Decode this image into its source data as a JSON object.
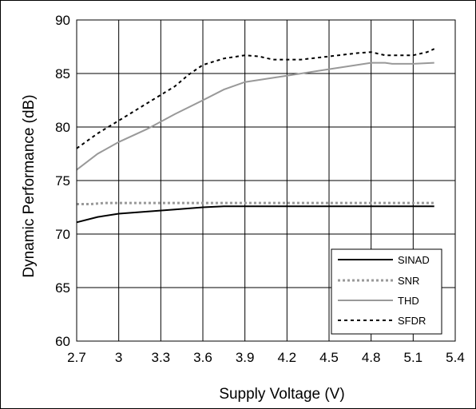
{
  "chart_data": {
    "type": "line",
    "title": "",
    "xlabel": "Supply Voltage (V)",
    "ylabel": "Dynamic Performance (dB)",
    "xlim": [
      2.7,
      5.4
    ],
    "ylim": [
      60,
      90
    ],
    "xticks": [
      "2.7",
      "3",
      "3.3",
      "3.6",
      "3.9",
      "4.2",
      "4.5",
      "4.8",
      "5.1",
      "5.4"
    ],
    "yticks": [
      "60",
      "65",
      "70",
      "75",
      "80",
      "85",
      "90"
    ],
    "grid": true,
    "legend_position": "bottom-right",
    "series": [
      {
        "name": "SINAD",
        "color": "#000000",
        "style": "solid",
        "x": [
          2.7,
          2.85,
          3.0,
          3.2,
          3.4,
          3.6,
          3.75,
          3.9,
          4.2,
          4.5,
          4.8,
          5.1,
          5.25
        ],
        "y": [
          71.1,
          71.6,
          71.9,
          72.1,
          72.3,
          72.5,
          72.6,
          72.6,
          72.6,
          72.6,
          72.6,
          72.6,
          72.6
        ]
      },
      {
        "name": "SNR",
        "color": "#999999",
        "style": "dotted",
        "x": [
          2.7,
          2.8,
          2.9,
          3.0,
          3.3,
          3.6,
          3.9,
          4.2,
          4.5,
          4.8,
          5.1,
          5.25
        ],
        "y": [
          72.8,
          72.8,
          72.9,
          72.9,
          72.9,
          72.9,
          72.9,
          72.9,
          72.9,
          72.9,
          72.9,
          72.9
        ]
      },
      {
        "name": "THD",
        "color": "#999999",
        "style": "solid",
        "x": [
          2.7,
          2.85,
          3.0,
          3.2,
          3.4,
          3.6,
          3.75,
          3.9,
          4.2,
          4.5,
          4.8,
          4.9,
          4.95,
          5.1,
          5.25
        ],
        "y": [
          76.0,
          77.5,
          78.6,
          79.8,
          81.2,
          82.5,
          83.5,
          84.2,
          84.8,
          85.4,
          86.0,
          86.0,
          85.9,
          85.9,
          86.0
        ]
      },
      {
        "name": "SFDR",
        "color": "#000000",
        "style": "dashed",
        "x": [
          2.7,
          2.85,
          3.0,
          3.2,
          3.4,
          3.5,
          3.6,
          3.75,
          3.9,
          4.0,
          4.1,
          4.3,
          4.5,
          4.7,
          4.8,
          4.9,
          5.0,
          5.1,
          5.2,
          5.25
        ],
        "y": [
          78.0,
          79.4,
          80.6,
          82.2,
          83.8,
          84.9,
          85.8,
          86.4,
          86.7,
          86.6,
          86.3,
          86.3,
          86.6,
          86.9,
          87.0,
          86.7,
          86.7,
          86.7,
          87.0,
          87.3
        ]
      }
    ]
  }
}
